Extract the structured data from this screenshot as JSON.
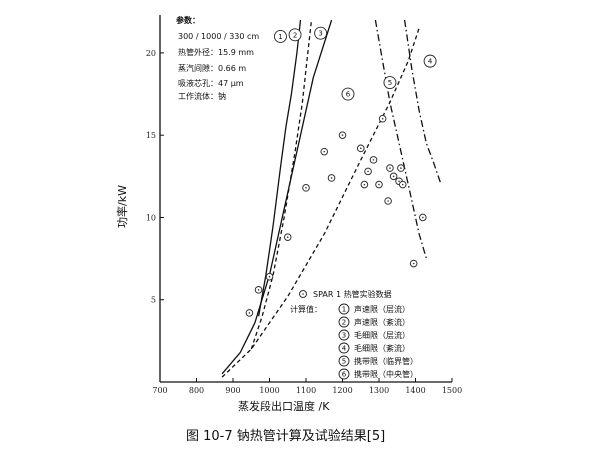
{
  "figure": {
    "caption": "图 10-7   钠热管计算及试验结果[5]"
  },
  "params": {
    "title": "参数：",
    "lines": [
      "300 / 1000 / 330 cm",
      "热管外径：15.9 mm",
      "蒸汽间隙：0.66 m",
      "吸液芯孔：47 μm",
      "工作流体：钠"
    ]
  },
  "legend": {
    "exp_label": "SPAR 1 热管实验数据",
    "calc_title": "计算值：",
    "items": [
      {
        "num": "1",
        "label": "声速限（层流）"
      },
      {
        "num": "2",
        "label": "声速限（紊流）"
      },
      {
        "num": "3",
        "label": "毛细限（层流）"
      },
      {
        "num": "4",
        "label": "毛细限（紊流）"
      },
      {
        "num": "5",
        "label": "携带限（临界管）"
      },
      {
        "num": "6",
        "label": "携带限（中央管）"
      }
    ]
  },
  "chart_data": {
    "type": "line",
    "xlabel": "蒸发段出口温度 /K",
    "ylabel": "功率/kW",
    "xlim": [
      700,
      1500
    ],
    "ylim": [
      0,
      22
    ],
    "x_ticks": [
      700,
      800,
      900,
      1000,
      1100,
      1200,
      1300,
      1400,
      1500
    ],
    "y_ticks": [
      5,
      10,
      15,
      20
    ],
    "series": [
      {
        "name": "1",
        "style": "solid",
        "x": [
          970,
          990,
          1010,
          1030,
          1045,
          1060,
          1075,
          1085
        ],
        "y": [
          4.0,
          6.5,
          9.5,
          13.0,
          15.5,
          17.5,
          20.0,
          22.0
        ]
      },
      {
        "name": "2",
        "style": "dashed",
        "x": [
          950,
          980,
          1010,
          1040,
          1070,
          1090,
          1105,
          1115
        ],
        "y": [
          2.0,
          4.0,
          6.5,
          10.0,
          14.0,
          17.0,
          20.0,
          22.0
        ]
      },
      {
        "name": "3",
        "style": "solid",
        "x": [
          870,
          920,
          960,
          1000,
          1040,
          1080,
          1120,
          1170
        ],
        "y": [
          0.5,
          1.8,
          3.6,
          6.5,
          10.5,
          14.5,
          18.5,
          22.0
        ]
      },
      {
        "name": "4",
        "style": "dashdot",
        "x": [
          1370,
          1390,
          1410,
          1430,
          1450,
          1470
        ],
        "y": [
          22.0,
          19.0,
          16.5,
          14.5,
          13.3,
          12.0
        ]
      },
      {
        "name": "5",
        "style": "dashdot",
        "x": [
          1290,
          1310,
          1330,
          1350,
          1370,
          1390,
          1410,
          1430
        ],
        "y": [
          22.0,
          19.5,
          17.0,
          15.0,
          13.0,
          11.0,
          9.0,
          7.5
        ]
      },
      {
        "name": "6",
        "style": "dashed",
        "x": [
          870,
          950,
          1050,
          1150,
          1250,
          1330,
          1380,
          1410
        ],
        "y": [
          0.3,
          2.0,
          5.2,
          9.0,
          13.5,
          17.0,
          19.5,
          21.5
        ]
      }
    ],
    "points": {
      "x": [
        945,
        970,
        1000,
        1050,
        1100,
        1150,
        1170,
        1200,
        1250,
        1260,
        1270,
        1285,
        1300,
        1310,
        1325,
        1330,
        1340,
        1355,
        1360,
        1365,
        1395,
        1420
      ],
      "y": [
        4.2,
        5.6,
        6.4,
        8.8,
        11.8,
        14.0,
        12.4,
        15.0,
        14.2,
        12.0,
        12.8,
        13.5,
        12.0,
        16.0,
        11.0,
        13.0,
        12.5,
        12.2,
        13.0,
        12.0,
        7.2,
        10.0
      ]
    }
  }
}
